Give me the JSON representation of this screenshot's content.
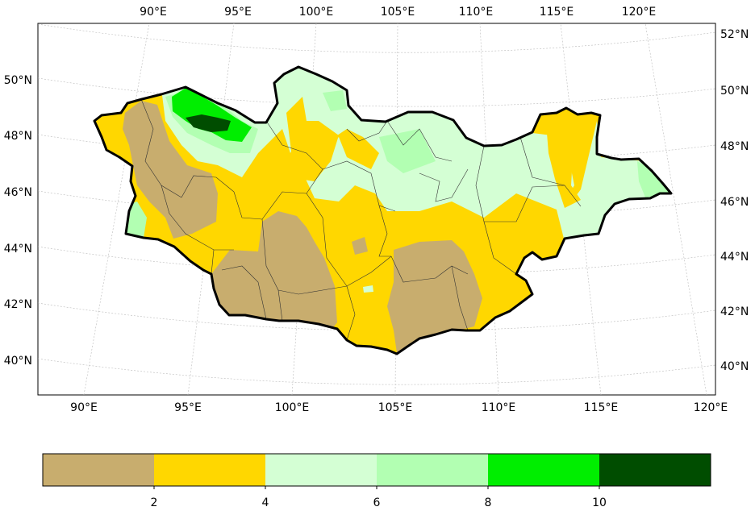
{
  "map": {
    "top_lon_labels": [
      "90°E",
      "95°E",
      "100°E",
      "105°E",
      "110°E",
      "115°E",
      "120°E"
    ],
    "bottom_lon_labels": [
      "90°E",
      "95°E",
      "100°E",
      "105°E",
      "110°E",
      "115°E",
      "120°E"
    ],
    "left_lat_labels": [
      "50°N",
      "48°N",
      "46°N",
      "44°N",
      "42°N",
      "40°N"
    ],
    "right_lat_labels": [
      "52°N",
      "50°N",
      "48°N",
      "46°N",
      "44°N",
      "42°N",
      "40°N"
    ]
  },
  "colorbar": {
    "tick_labels": [
      "2",
      "4",
      "6",
      "8",
      "10"
    ],
    "colors": [
      "#c8ad6e",
      "#ffd700",
      "#d4ffd4",
      "#b2ffb2",
      "#00ee00",
      "#004d00"
    ]
  },
  "colors": {
    "brown": "#c8ad6e",
    "yellow": "#ffd700",
    "pale_green": "#d4ffd4",
    "light_green": "#b2ffb2",
    "green": "#00ee00",
    "dark_green": "#004d00"
  }
}
